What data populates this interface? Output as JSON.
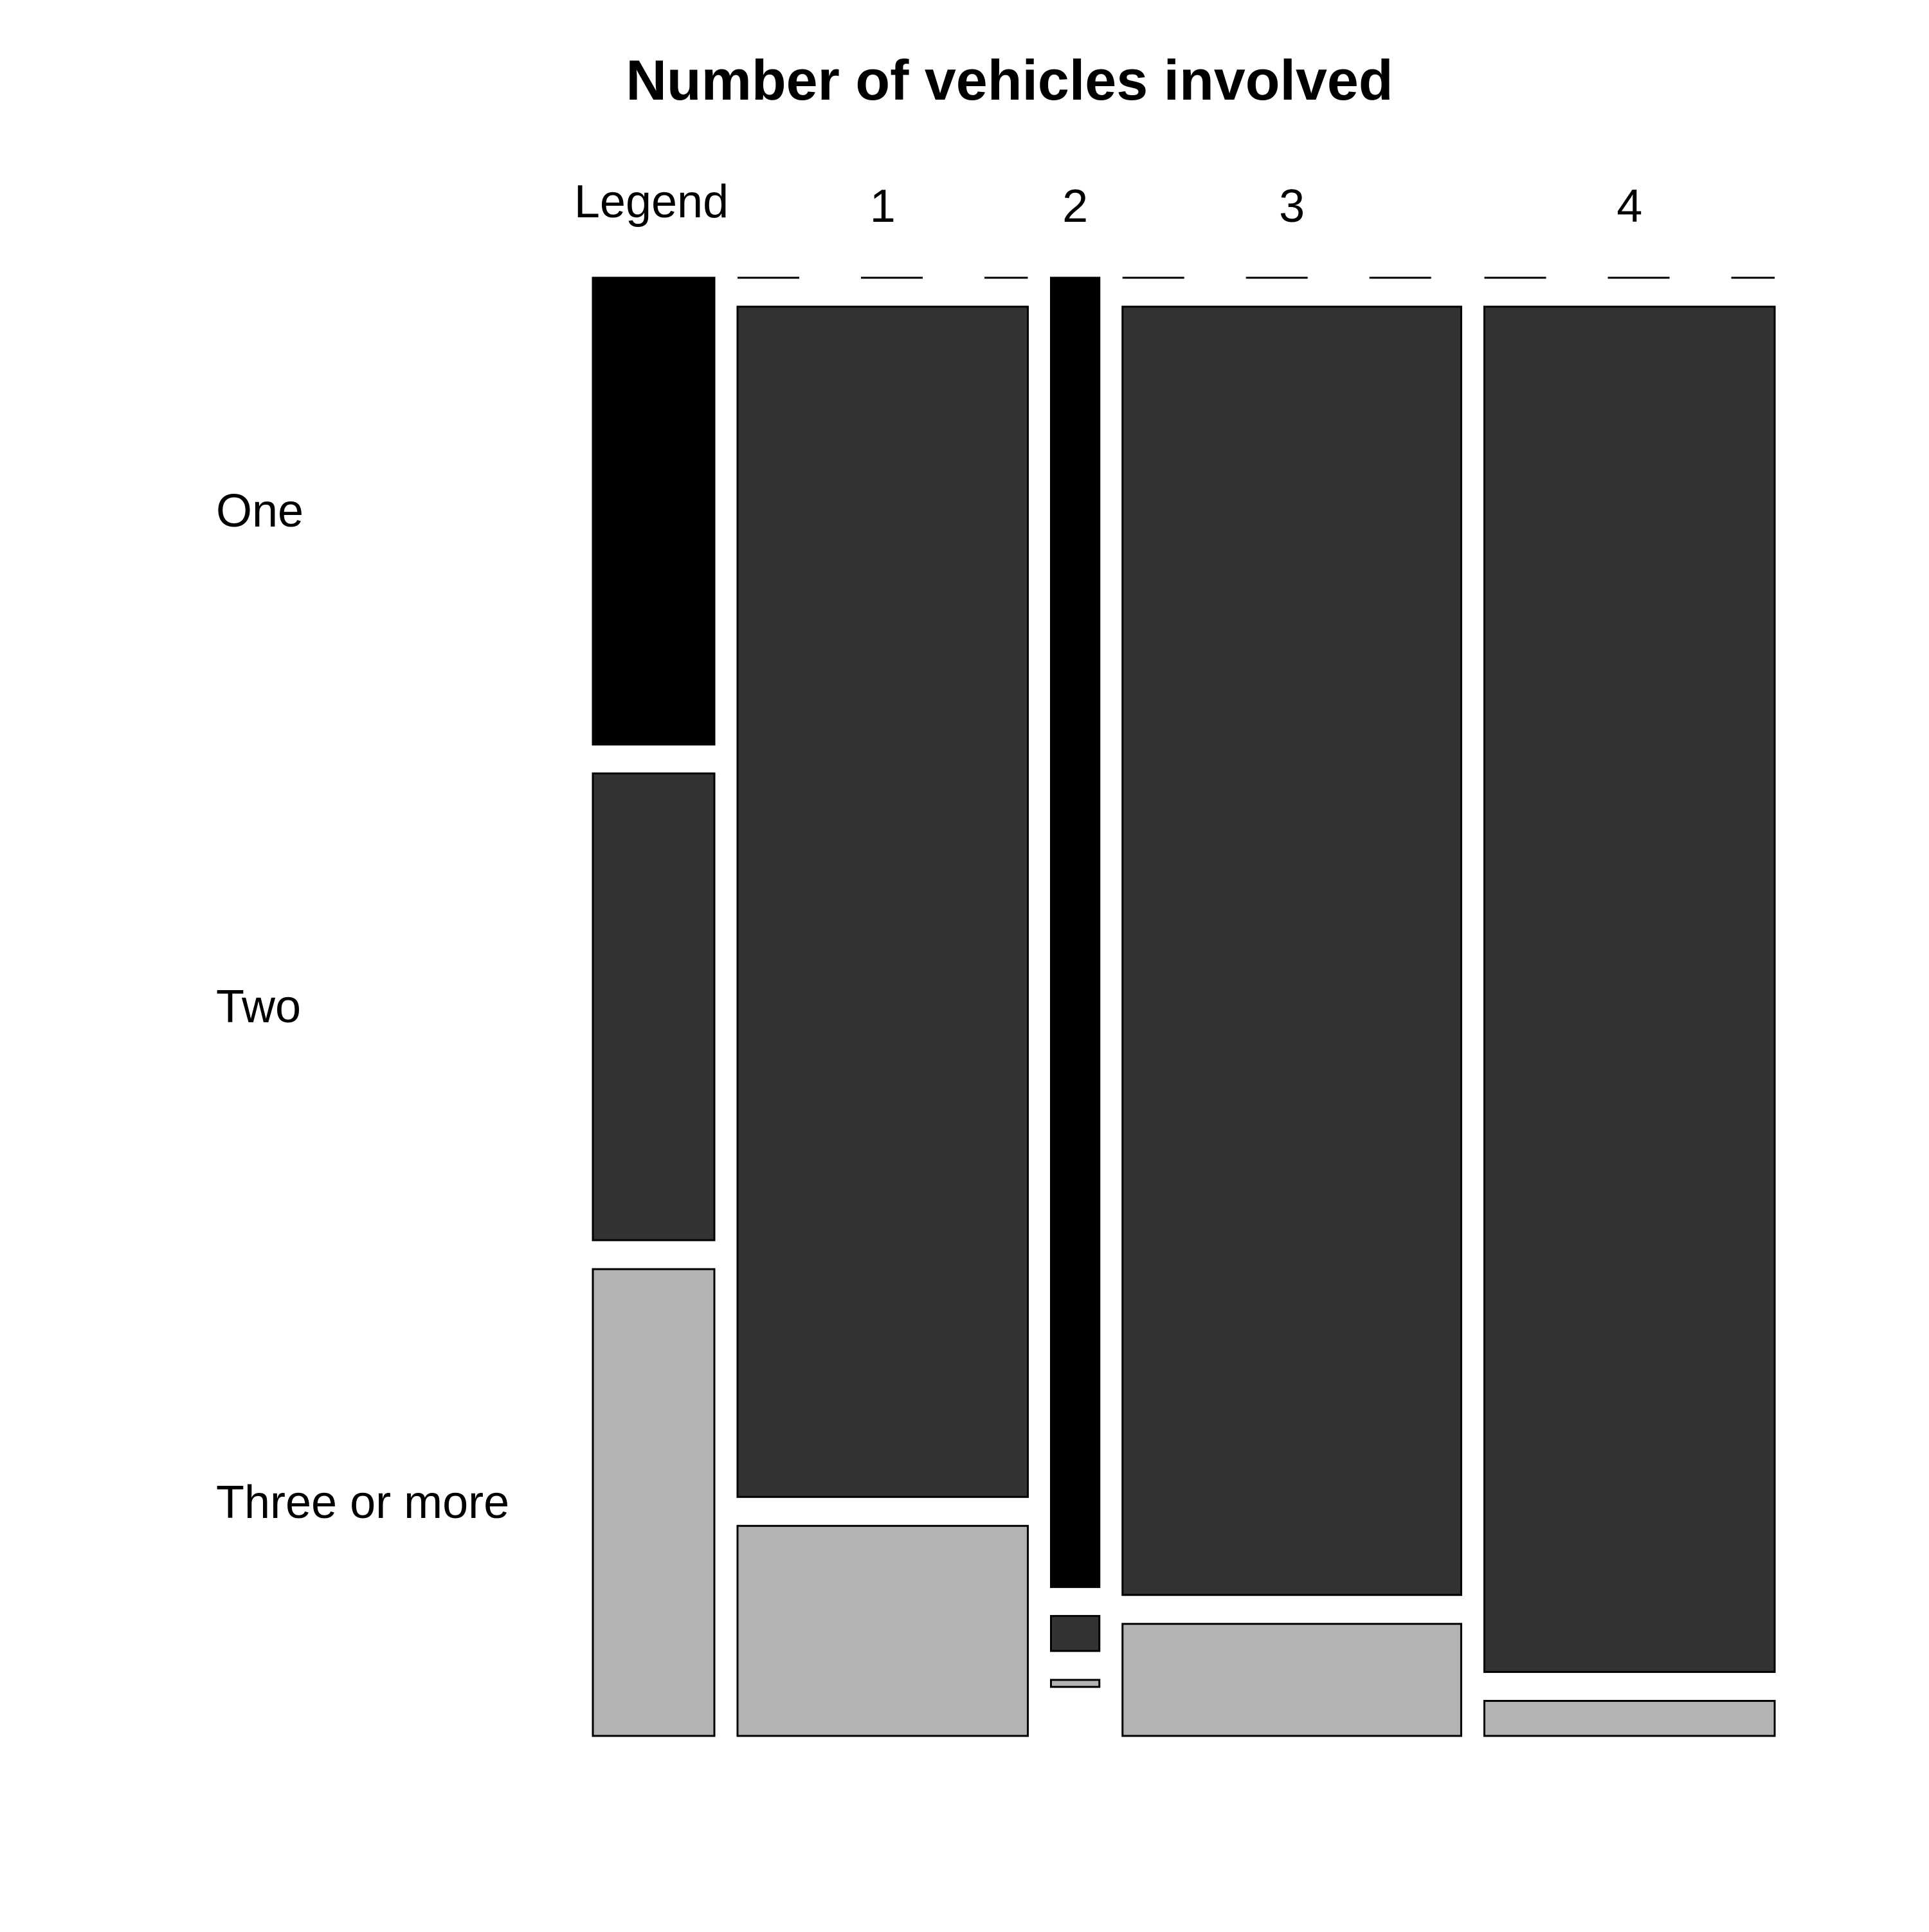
{
  "chart_data": {
    "type": "mosaic",
    "title": "Number of vehicles involved",
    "legend_label": "Legend",
    "categories": [
      "1",
      "2",
      "3",
      "4"
    ],
    "rows": [
      "One",
      "Two",
      "Three or more"
    ],
    "column_widths": [
      0.3,
      0.05,
      0.35,
      0.3
    ],
    "series": [
      {
        "name": "One",
        "color": "#000000",
        "values": [
          0.0,
          0.935,
          0.0,
          0.0
        ]
      },
      {
        "name": "Two",
        "color": "#333333",
        "values": [
          0.85,
          0.025,
          0.92,
          0.975
        ]
      },
      {
        "name": "Three or more",
        "color": "#b3b3b3",
        "values": [
          0.15,
          0.005,
          0.08,
          0.025
        ]
      }
    ]
  }
}
